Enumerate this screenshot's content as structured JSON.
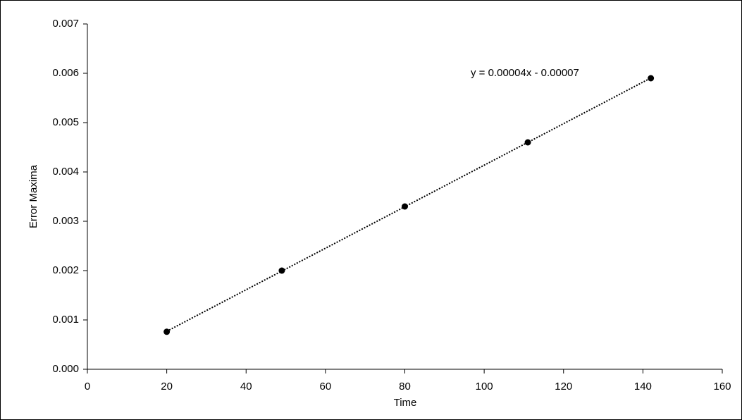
{
  "chart_data": {
    "type": "scatter",
    "x_label": "Time",
    "y_label": "Error Maxima",
    "annotation": "y = 0.00004x - 0.00007",
    "series": [
      {
        "color": "#000000",
        "x": [
          20,
          49,
          80,
          111,
          142
        ],
        "values": [
          0.00076,
          0.002,
          0.0033,
          0.0046,
          0.0059
        ]
      }
    ],
    "trendline": true,
    "xlim": [
      0,
      160
    ],
    "xticks": [
      0,
      20,
      40,
      60,
      80,
      100,
      120,
      140,
      160
    ],
    "ylim": [
      0,
      0.007
    ],
    "yticks": [
      {
        "value": 0,
        "label": "0.000"
      },
      0.001,
      0.002,
      0.003,
      0.004,
      0.005,
      0.006,
      0.007
    ],
    "grid": false
  }
}
